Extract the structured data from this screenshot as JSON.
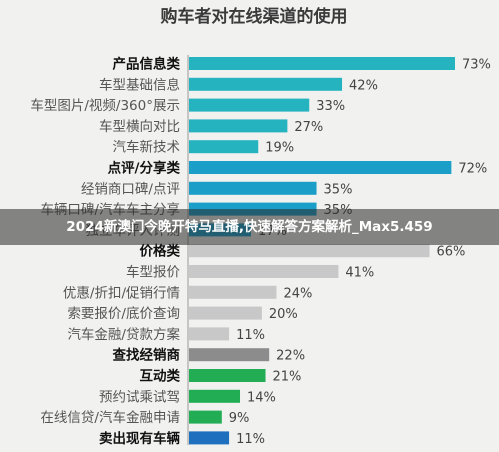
{
  "chart_data": {
    "type": "bar",
    "orientation": "horizontal",
    "title": "购车者对在线渠道的使用",
    "unit": "%",
    "xlim": [
      0,
      75
    ],
    "categories": [
      {
        "label": "产品信息类",
        "value": 73,
        "group_header": true,
        "color": "#26b3c0"
      },
      {
        "label": "车型基础信息",
        "value": 42,
        "group_header": false,
        "color": "#26b3c0"
      },
      {
        "label": "车型图片/视频/360°展示",
        "value": 33,
        "group_header": false,
        "color": "#26b3c0"
      },
      {
        "label": "车型横向对比",
        "value": 27,
        "group_header": false,
        "color": "#26b3c0"
      },
      {
        "label": "汽车新技术",
        "value": 19,
        "group_header": false,
        "color": "#26b3c0"
      },
      {
        "label": "点评/分享类",
        "value": 72,
        "group_header": true,
        "color": "#1b9fc9"
      },
      {
        "label": "经销商口碑/点评",
        "value": 35,
        "group_header": false,
        "color": "#1b9fc9"
      },
      {
        "label": "车辆口碑/汽车车主分享",
        "value": 35,
        "group_header": false,
        "color": "#1b9fc9"
      },
      {
        "label": "独立车评人评测",
        "value": 17,
        "group_header": false,
        "color": "#1b9fc9"
      },
      {
        "label": "价格类",
        "value": 66,
        "group_header": true,
        "color": "#c8c8c8"
      },
      {
        "label": "车型报价",
        "value": 41,
        "group_header": false,
        "color": "#c8c8c8"
      },
      {
        "label": "优惠/折扣/促销行情",
        "value": 24,
        "group_header": false,
        "color": "#c8c8c8"
      },
      {
        "label": "索要报价/底价查询",
        "value": 20,
        "group_header": false,
        "color": "#c8c8c8"
      },
      {
        "label": "汽车金融/贷款方案",
        "value": 11,
        "group_header": false,
        "color": "#c8c8c8"
      },
      {
        "label": "查找经销商",
        "value": 22,
        "group_header": true,
        "color": "#8c8c8c"
      },
      {
        "label": "互动类",
        "value": 21,
        "group_header": true,
        "color": "#22ad55"
      },
      {
        "label": "预约试乘试驾",
        "value": 14,
        "group_header": false,
        "color": "#22ad55"
      },
      {
        "label": "在线信贷/汽车金融申请",
        "value": 9,
        "group_header": false,
        "color": "#22ad55"
      },
      {
        "label": "卖出现有车辆",
        "value": 11,
        "group_header": true,
        "color": "#1f6fbf"
      }
    ]
  },
  "overlay": {
    "caption": "2024新澳门今晚开特马直播,快速解答方案解析_Max5.459"
  },
  "colors": {
    "background": "#f1f1f0",
    "axis": "#999999",
    "overlay_band": "#3a3a3a"
  }
}
